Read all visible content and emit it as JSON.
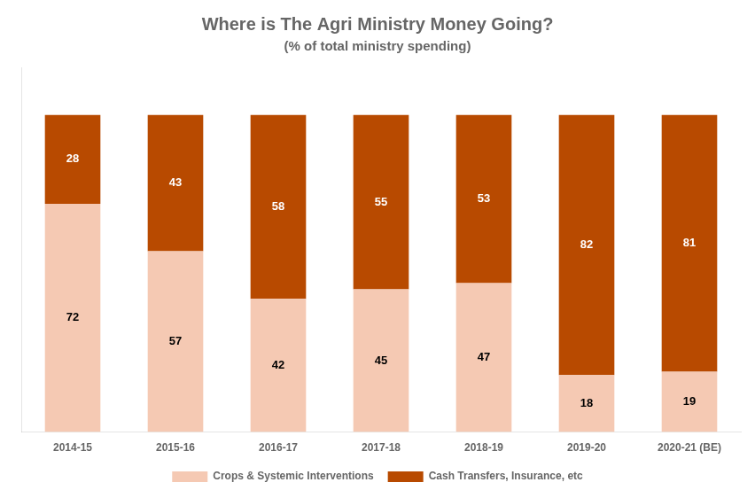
{
  "chart_data": {
    "type": "bar",
    "title": "Where is The Agri Ministry Money Going?",
    "subtitle": "(% of total ministry spending)",
    "categories": [
      "2014-15",
      "2015-16",
      "2016-17",
      "2017-18",
      "2018-19",
      "2019-20",
      "2020-21 (BE)"
    ],
    "series": [
      {
        "name": "Crops & Systemic Interventions",
        "color": "#F5C9B3",
        "values": [
          72,
          57,
          42,
          45,
          47,
          18,
          19
        ]
      },
      {
        "name": "Cash Transfers, Insurance, etc",
        "color": "#B84A00",
        "values": [
          28,
          43,
          58,
          55,
          53,
          82,
          81
        ]
      }
    ],
    "stacked": true,
    "ylim": [
      0,
      115
    ],
    "yticks": [],
    "grid": false,
    "legend": "bottom",
    "data_labels": true,
    "tick_labels": "x"
  }
}
